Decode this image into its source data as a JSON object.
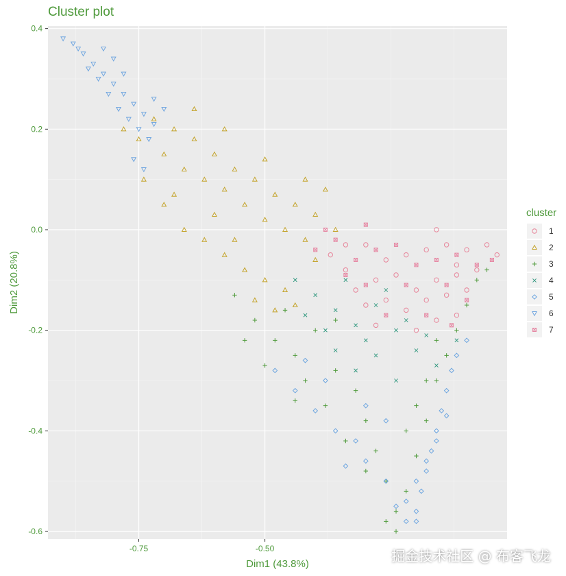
{
  "chart_data": {
    "type": "scatter",
    "title": "Cluster plot",
    "xlabel": "Dim1 (43.8%)",
    "ylabel": "Dim2 (20.8%)",
    "xlim": [
      -0.93,
      -0.02
    ],
    "ylim": [
      -0.615,
      0.405
    ],
    "x_ticks": [
      -0.75,
      -0.5
    ],
    "x_tick_labels": [
      "-0.75",
      "-0.50"
    ],
    "y_ticks": [
      -0.6,
      -0.4,
      -0.2,
      0.0,
      0.2,
      0.4
    ],
    "y_tick_labels": [
      "-0.6",
      "-0.4",
      "-0.2",
      "0.0",
      "0.2",
      "0.4"
    ],
    "grid": true,
    "background": "#ebebeb",
    "legend": {
      "title": "cluster",
      "placement": "right"
    },
    "series": [
      {
        "name": "1",
        "marker": "circle",
        "color": "#e7859a",
        "points": [
          [
            -0.37,
            -0.05
          ],
          [
            -0.34,
            -0.08
          ],
          [
            -0.3,
            -0.03
          ],
          [
            -0.26,
            -0.06
          ],
          [
            -0.22,
            -0.05
          ],
          [
            -0.18,
            -0.04
          ],
          [
            -0.14,
            -0.03
          ],
          [
            -0.1,
            -0.04
          ],
          [
            -0.06,
            -0.03
          ],
          [
            -0.04,
            -0.05
          ],
          [
            -0.32,
            -0.12
          ],
          [
            -0.28,
            -0.1
          ],
          [
            -0.24,
            -0.09
          ],
          [
            -0.2,
            -0.12
          ],
          [
            -0.16,
            -0.1
          ],
          [
            -0.12,
            -0.09
          ],
          [
            -0.08,
            -0.08
          ],
          [
            -0.3,
            -0.15
          ],
          [
            -0.26,
            -0.14
          ],
          [
            -0.22,
            -0.16
          ],
          [
            -0.18,
            -0.14
          ],
          [
            -0.14,
            -0.13
          ],
          [
            -0.1,
            -0.12
          ],
          [
            -0.2,
            -0.2
          ],
          [
            -0.16,
            -0.18
          ],
          [
            -0.12,
            -0.17
          ],
          [
            -0.34,
            -0.03
          ],
          [
            -0.16,
            0.0
          ],
          [
            -0.12,
            -0.07
          ],
          [
            -0.28,
            -0.19
          ]
        ]
      },
      {
        "name": "2",
        "marker": "triangle",
        "color": "#c4a42c",
        "points": [
          [
            -0.78,
            0.2
          ],
          [
            -0.75,
            0.18
          ],
          [
            -0.72,
            0.22
          ],
          [
            -0.7,
            0.15
          ],
          [
            -0.68,
            0.2
          ],
          [
            -0.66,
            0.12
          ],
          [
            -0.64,
            0.18
          ],
          [
            -0.62,
            0.1
          ],
          [
            -0.6,
            0.15
          ],
          [
            -0.58,
            0.08
          ],
          [
            -0.56,
            0.12
          ],
          [
            -0.54,
            0.05
          ],
          [
            -0.52,
            0.1
          ],
          [
            -0.5,
            0.02
          ],
          [
            -0.48,
            0.07
          ],
          [
            -0.46,
            0.0
          ],
          [
            -0.44,
            0.05
          ],
          [
            -0.42,
            -0.02
          ],
          [
            -0.4,
            0.03
          ],
          [
            -0.38,
            0.08
          ],
          [
            -0.7,
            0.05
          ],
          [
            -0.66,
            0.0
          ],
          [
            -0.62,
            -0.02
          ],
          [
            -0.58,
            -0.05
          ],
          [
            -0.54,
            -0.08
          ],
          [
            -0.5,
            -0.1
          ],
          [
            -0.46,
            -0.12
          ],
          [
            -0.52,
            -0.14
          ],
          [
            -0.48,
            -0.16
          ],
          [
            -0.44,
            -0.15
          ],
          [
            -0.74,
            0.1
          ],
          [
            -0.68,
            0.07
          ],
          [
            -0.6,
            0.03
          ],
          [
            -0.56,
            -0.02
          ],
          [
            -0.36,
            0.0
          ],
          [
            -0.4,
            -0.06
          ],
          [
            -0.64,
            0.24
          ],
          [
            -0.58,
            0.2
          ],
          [
            -0.5,
            0.14
          ],
          [
            -0.42,
            0.1
          ]
        ]
      },
      {
        "name": "3",
        "marker": "plus",
        "color": "#4e9a3a",
        "points": [
          [
            -0.56,
            -0.13
          ],
          [
            -0.52,
            -0.18
          ],
          [
            -0.48,
            -0.22
          ],
          [
            -0.44,
            -0.25
          ],
          [
            -0.4,
            -0.2
          ],
          [
            -0.36,
            -0.28
          ],
          [
            -0.32,
            -0.32
          ],
          [
            -0.3,
            -0.38
          ],
          [
            -0.28,
            -0.44
          ],
          [
            -0.26,
            -0.5
          ],
          [
            -0.24,
            -0.56
          ],
          [
            -0.22,
            -0.52
          ],
          [
            -0.2,
            -0.45
          ],
          [
            -0.18,
            -0.38
          ],
          [
            -0.16,
            -0.3
          ],
          [
            -0.14,
            -0.25
          ],
          [
            -0.12,
            -0.2
          ],
          [
            -0.1,
            -0.15
          ],
          [
            -0.08,
            -0.1
          ],
          [
            -0.06,
            -0.08
          ],
          [
            -0.46,
            -0.16
          ],
          [
            -0.42,
            -0.3
          ],
          [
            -0.38,
            -0.35
          ],
          [
            -0.34,
            -0.42
          ],
          [
            -0.3,
            -0.48
          ],
          [
            -0.24,
            -0.6
          ],
          [
            -0.26,
            -0.58
          ],
          [
            -0.22,
            -0.4
          ],
          [
            -0.18,
            -0.3
          ],
          [
            -0.5,
            -0.27
          ],
          [
            -0.54,
            -0.22
          ],
          [
            -0.44,
            -0.34
          ],
          [
            -0.36,
            -0.18
          ],
          [
            -0.2,
            -0.35
          ],
          [
            -0.16,
            -0.22
          ]
        ]
      },
      {
        "name": "4",
        "marker": "cross",
        "color": "#3a9c84",
        "points": [
          [
            -0.44,
            -0.1
          ],
          [
            -0.4,
            -0.13
          ],
          [
            -0.36,
            -0.16
          ],
          [
            -0.32,
            -0.19
          ],
          [
            -0.28,
            -0.15
          ],
          [
            -0.24,
            -0.2
          ],
          [
            -0.2,
            -0.24
          ],
          [
            -0.16,
            -0.27
          ],
          [
            -0.12,
            -0.22
          ],
          [
            -0.36,
            -0.24
          ],
          [
            -0.32,
            -0.28
          ],
          [
            -0.28,
            -0.25
          ],
          [
            -0.24,
            -0.3
          ],
          [
            -0.38,
            -0.2
          ],
          [
            -0.3,
            -0.22
          ],
          [
            -0.26,
            -0.12
          ],
          [
            -0.22,
            -0.18
          ],
          [
            -0.18,
            -0.21
          ],
          [
            -0.42,
            -0.17
          ],
          [
            -0.34,
            -0.1
          ]
        ]
      },
      {
        "name": "5",
        "marker": "diamond",
        "color": "#6ea6e0",
        "points": [
          [
            -0.48,
            -0.28
          ],
          [
            -0.44,
            -0.32
          ],
          [
            -0.4,
            -0.36
          ],
          [
            -0.36,
            -0.4
          ],
          [
            -0.32,
            -0.42
          ],
          [
            -0.3,
            -0.46
          ],
          [
            -0.26,
            -0.5
          ],
          [
            -0.24,
            -0.55
          ],
          [
            -0.22,
            -0.58
          ],
          [
            -0.2,
            -0.56
          ],
          [
            -0.19,
            -0.52
          ],
          [
            -0.18,
            -0.48
          ],
          [
            -0.17,
            -0.44
          ],
          [
            -0.16,
            -0.4
          ],
          [
            -0.15,
            -0.36
          ],
          [
            -0.14,
            -0.32
          ],
          [
            -0.13,
            -0.28
          ],
          [
            -0.12,
            -0.25
          ],
          [
            -0.1,
            -0.22
          ],
          [
            -0.22,
            -0.54
          ],
          [
            -0.2,
            -0.5
          ],
          [
            -0.18,
            -0.46
          ],
          [
            -0.16,
            -0.42
          ],
          [
            -0.14,
            -0.37
          ],
          [
            -0.34,
            -0.47
          ],
          [
            -0.38,
            -0.3
          ],
          [
            -0.42,
            -0.26
          ],
          [
            -0.3,
            -0.35
          ],
          [
            -0.26,
            -0.38
          ],
          [
            -0.2,
            -0.58
          ]
        ]
      },
      {
        "name": "6",
        "marker": "triangle-down",
        "color": "#72a7e0",
        "points": [
          [
            -0.9,
            0.38
          ],
          [
            -0.88,
            0.37
          ],
          [
            -0.86,
            0.35
          ],
          [
            -0.84,
            0.33
          ],
          [
            -0.82,
            0.31
          ],
          [
            -0.8,
            0.29
          ],
          [
            -0.78,
            0.27
          ],
          [
            -0.76,
            0.25
          ],
          [
            -0.74,
            0.23
          ],
          [
            -0.72,
            0.21
          ],
          [
            -0.85,
            0.32
          ],
          [
            -0.83,
            0.3
          ],
          [
            -0.81,
            0.27
          ],
          [
            -0.79,
            0.24
          ],
          [
            -0.77,
            0.22
          ],
          [
            -0.75,
            0.2
          ],
          [
            -0.73,
            0.18
          ],
          [
            -0.76,
            0.14
          ],
          [
            -0.74,
            0.12
          ],
          [
            -0.72,
            0.26
          ],
          [
            -0.7,
            0.24
          ],
          [
            -0.78,
            0.31
          ],
          [
            -0.8,
            0.34
          ],
          [
            -0.82,
            0.36
          ],
          [
            -0.87,
            0.36
          ]
        ]
      },
      {
        "name": "7",
        "marker": "square-x",
        "color": "#e68aa5",
        "points": [
          [
            -0.4,
            -0.04
          ],
          [
            -0.36,
            -0.02
          ],
          [
            -0.32,
            -0.06
          ],
          [
            -0.28,
            -0.04
          ],
          [
            -0.24,
            -0.03
          ],
          [
            -0.2,
            -0.07
          ],
          [
            -0.16,
            -0.06
          ],
          [
            -0.12,
            -0.05
          ],
          [
            -0.08,
            -0.07
          ],
          [
            -0.34,
            -0.09
          ],
          [
            -0.3,
            -0.11
          ],
          [
            -0.22,
            -0.11
          ],
          [
            -0.14,
            -0.11
          ],
          [
            -0.1,
            -0.14
          ],
          [
            -0.26,
            -0.17
          ],
          [
            -0.18,
            -0.17
          ],
          [
            -0.13,
            -0.19
          ],
          [
            -0.38,
            0.0
          ],
          [
            -0.3,
            0.01
          ],
          [
            -0.05,
            -0.06
          ]
        ]
      }
    ]
  }
}
